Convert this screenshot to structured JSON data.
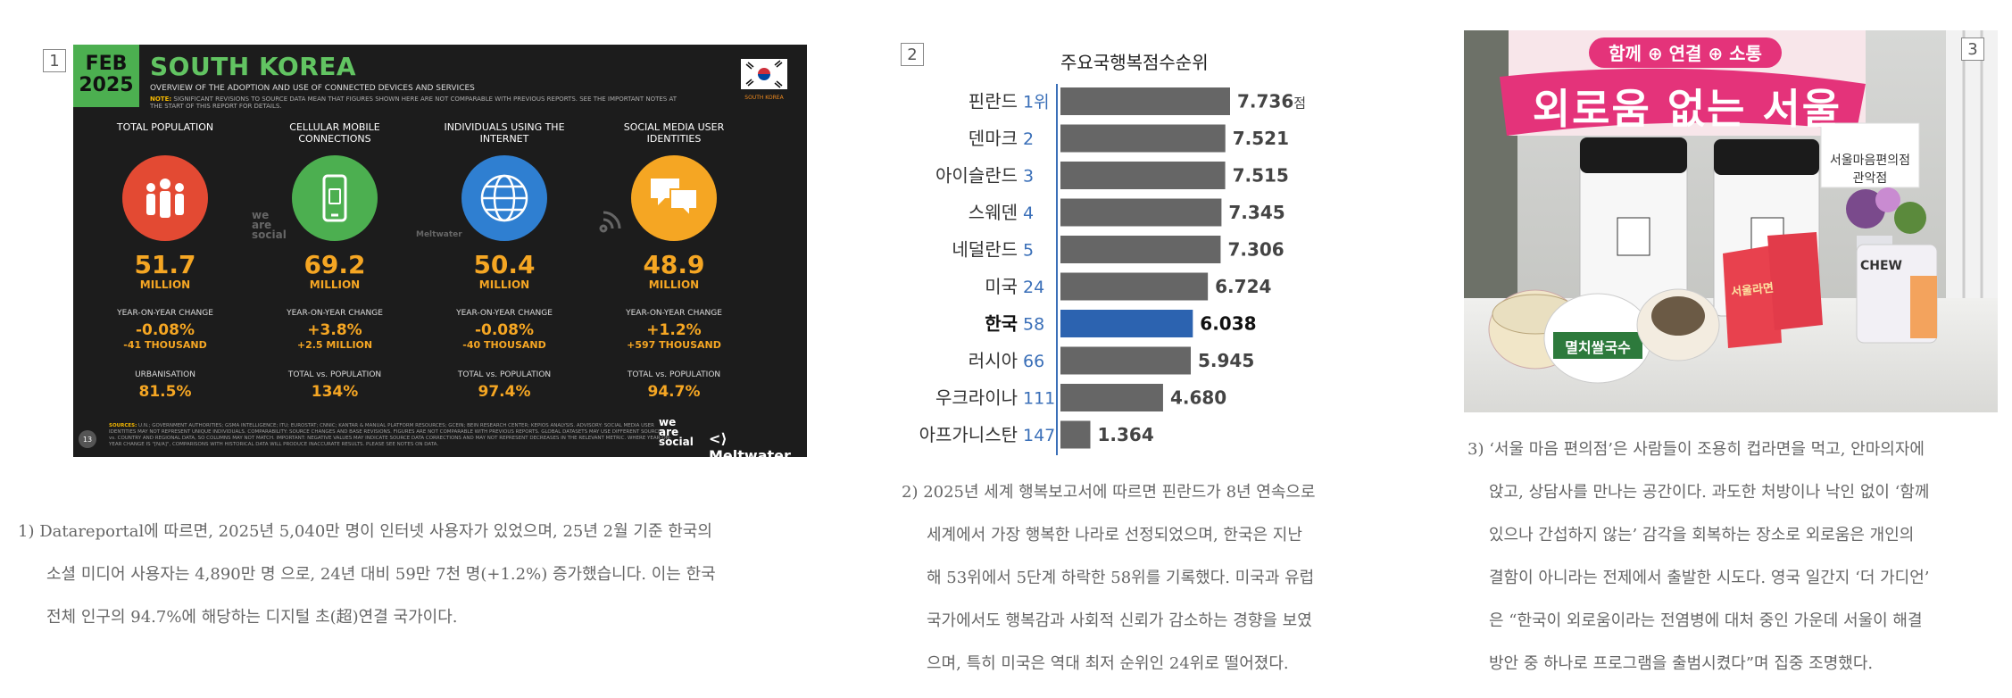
{
  "panels": {
    "p1_number": "1",
    "p2_number": "2",
    "p3_number": "3"
  },
  "infographic": {
    "date_month": "FEB",
    "date_year": "2025",
    "title": "SOUTH KOREA",
    "subtitle": "OVERVIEW OF THE ADOPTION AND USE OF CONNECTED DEVICES AND SERVICES",
    "note_prefix": "NOTE:",
    "note_text": "SIGNIFICANT REVISIONS TO SOURCE DATA MEAN THAT FIGURES SHOWN HERE ARE NOT COMPARABLE WITH PREVIOUS REPORTS. SEE THE IMPORTANT NOTES AT THE START OF THIS REPORT FOR DETAILS.",
    "country_label": "SOUTH KOREA",
    "columns": [
      {
        "label": "TOTAL POPULATION",
        "value": "51.7",
        "unit": "MILLION",
        "change_label": "YEAR-ON-YEAR CHANGE",
        "change_pct": "-0.08%",
        "change_abs": "-41 THOUSAND",
        "ratio_label": "URBANISATION",
        "ratio": "81.5%",
        "color": "#e34a33",
        "icon": "people-icon"
      },
      {
        "label": "CELLULAR MOBILE CONNECTIONS",
        "value": "69.2",
        "unit": "MILLION",
        "change_label": "YEAR-ON-YEAR CHANGE",
        "change_pct": "+3.8%",
        "change_abs": "+2.5 MILLION",
        "ratio_label": "TOTAL vs. POPULATION",
        "ratio": "134%",
        "color": "#4caf50",
        "icon": "mobile-phone-icon"
      },
      {
        "label": "INDIVIDUALS USING THE INTERNET",
        "value": "50.4",
        "unit": "MILLION",
        "change_label": "YEAR-ON-YEAR CHANGE",
        "change_pct": "-0.08%",
        "change_abs": "-40 THOUSAND",
        "ratio_label": "TOTAL vs. POPULATION",
        "ratio": "97.4%",
        "color": "#2f7fd1",
        "icon": "globe-icon"
      },
      {
        "label": "SOCIAL MEDIA USER IDENTITIES",
        "value": "48.9",
        "unit": "MILLION",
        "change_label": "YEAR-ON-YEAR CHANGE",
        "change_pct": "+1.2%",
        "change_abs": "+597 THOUSAND",
        "ratio_label": "TOTAL vs. POPULATION",
        "ratio": "94.7%",
        "color": "#f5a623",
        "icon": "chat-bubbles-icon"
      }
    ],
    "footer_sources_label": "SOURCES:",
    "footer_text": "U.N.; GOVERNMENT AUTHORITIES; GSMA INTELLIGENCE; ITU; EUROSTAT; CNNIC; KANTAR & MANUAL PLATFORM RESOURCES; GCEIN; BEIN RESEARCH CENTER; KEPIOS ANALYSIS. ADVISORY: SOCIAL MEDIA USER IDENTITIES MAY NOT REPRESENT UNIQUE INDIVIDUALS. COMPARABILITY: SOURCE CHANGES AND BASE REVISIONS. FIGURES ARE NOT COMPARABLE WITH PREVIOUS REPORTS. GLOBAL DATASETS MAY USE DIFFERENT SOURCES vs. COUNTRY AND REGIONAL DATA, SO COLUMNS MAY NOT MATCH. IMPORTANT: NEGATIVE VALUES MAY INDICATE SOURCE DATA CORRECTIONS AND MAY NOT REPRESENT DECREASES IN THE RELEVANT METRIC. WHERE YEAR-ON-YEAR CHANGE IS \"[N/A]\", COMPARISONS WITH HISTORICAL DATA WILL PRODUCE INACCURATE RESULTS. PLEASE SEE NOTES ON DATA.",
    "page_number": "13",
    "brand1": "we are social",
    "brand2": "Meltwater",
    "watermark1": "we are social",
    "watermark2": "Meltwater"
  },
  "chart_data": {
    "type": "bar",
    "title": "주요국행복점수순위",
    "categories": [
      "핀란드",
      "덴마크",
      "아이슬란드",
      "스웨덴",
      "네덜란드",
      "미국",
      "한국",
      "러시아",
      "우크라이나",
      "아프가니스탄"
    ],
    "ranks": [
      "1위",
      "2",
      "3",
      "4",
      "5",
      "24",
      "58",
      "66",
      "111",
      "147"
    ],
    "values": [
      7.736,
      7.521,
      7.515,
      7.345,
      7.306,
      6.724,
      6.038,
      5.945,
      4.68,
      1.364
    ],
    "value_labels": [
      "7.736",
      "7.521",
      "7.515",
      "7.345",
      "7.306",
      "6.724",
      "6.038",
      "5.945",
      "4.680",
      "1.364"
    ],
    "value_unit": "점",
    "highlight_index": 6,
    "bar_color": "#666666",
    "highlight_color": "#2c63b0",
    "ylim": [
      0,
      8
    ]
  },
  "photo": {
    "banner_top": "함께 ⊕ 연결 ⊕ 소통",
    "banner_main": "외로움 없는 서울",
    "sign_line1": "서울마음편의점",
    "sign_line2": "관악점",
    "cup_label": "멸치쌀국수",
    "snack_label": "서울라면",
    "pouch_label": "CHEW"
  },
  "captions": {
    "c1": [
      "1)  Datareportal에 따르면, 2025년 5,040만 명이 인터넷 사용자가 있었으며, 25년 2월 기준 한국의",
      "소셜 미디어 사용자는 4,890만 명 으로, 24년 대비 59만 7천 명(+1.2%) 증가했습니다. 이는 한국",
      "전체 인구의 94.7%에 해당하는 디지털 초(超)연결 국가이다."
    ],
    "c2": [
      "2)  2025년 세계 행복보고서에 따르면 핀란드가 8년 연속으로",
      "세계에서 가장 행복한 나라로 선정되었으며, 한국은 지난",
      "해 53위에서 5단계 하락한 58위를 기록했다. 미국과 유럽",
      "국가에서도 행복감과 사회적 신뢰가 감소하는 경향을 보였",
      "으며, 특히 미국은 역대 최저 순위인 24위로 떨어졌다."
    ],
    "c3": [
      "3) ‘서울 마음 편의점’은 사람들이 조용히 컵라면을 먹고, 안마의자에",
      "앉고, 상담사를 만나는 공간이다. 과도한 처방이나 낙인 없이 ‘함께",
      "있으나 간섭하지 않는’ 감각을 회복하는 장소로 외로움은 개인의",
      "결함이 아니라는 전제에서 출발한 시도다. 영국 일간지 ‘더 가디언’",
      "은 “한국이 외로움이라는 전염병에 대처 중인 가운데 서울이 해결",
      "방안 중 하나로 프로그램을 출범시켰다”며 집중 조명했다."
    ]
  }
}
